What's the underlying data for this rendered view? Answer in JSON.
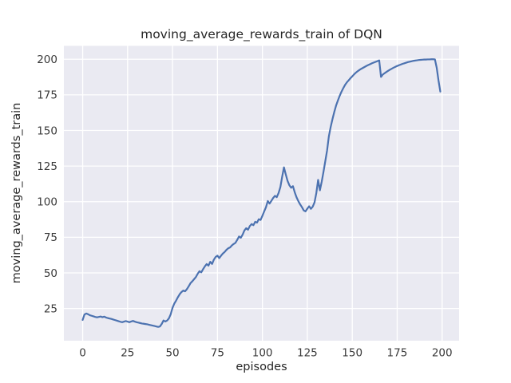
{
  "chart_data": {
    "type": "line",
    "title": "moving_average_rewards_train of DQN",
    "xlabel": "episodes",
    "ylabel": "moving_average_rewards_train",
    "xticks": [
      0,
      25,
      50,
      75,
      100,
      125,
      150,
      175,
      200
    ],
    "yticks": [
      25,
      50,
      75,
      100,
      125,
      150,
      175,
      200
    ],
    "xlim": [
      -10.45,
      209.45
    ],
    "ylim": [
      2.4,
      209.4
    ],
    "grid": true,
    "legend": "none",
    "style": "seaborn-darkgrid",
    "line_color": "#4C72B0",
    "plot_bg": "#EAEAF2",
    "grid_color": "#FFFFFF",
    "text_color": "#262626",
    "x_start": 0,
    "x_step": 1,
    "series": [
      {
        "name": "moving_average_rewards_train",
        "values": [
          17.0,
          20.8,
          21.5,
          21.0,
          20.3,
          19.9,
          19.5,
          19.1,
          18.8,
          19.1,
          19.4,
          18.9,
          19.3,
          18.7,
          18.3,
          18.0,
          17.7,
          17.3,
          16.9,
          16.5,
          16.1,
          15.7,
          15.4,
          15.8,
          16.2,
          15.8,
          15.4,
          15.9,
          16.3,
          15.8,
          15.4,
          15.1,
          14.8,
          14.5,
          14.3,
          14.1,
          13.9,
          13.6,
          13.3,
          13.0,
          12.7,
          12.4,
          12.1,
          12.4,
          14.2,
          16.6,
          15.9,
          16.6,
          18.1,
          21.0,
          25.5,
          28.5,
          30.6,
          33.0,
          35.1,
          36.6,
          37.6,
          37.1,
          38.6,
          40.6,
          42.8,
          44.1,
          45.6,
          47.1,
          49.4,
          51.2,
          50.4,
          52.6,
          54.6,
          56.2,
          55.1,
          57.8,
          56.3,
          59.3,
          61.2,
          62.1,
          60.4,
          62.1,
          63.6,
          64.7,
          66.2,
          67.3,
          67.9,
          69.3,
          70.3,
          71.1,
          73.2,
          75.6,
          74.7,
          76.9,
          79.8,
          81.4,
          80.3,
          82.9,
          84.3,
          83.5,
          85.9,
          85.3,
          87.7,
          87.2,
          90.1,
          93.2,
          96.1,
          100.5,
          98.7,
          100.6,
          102.6,
          104.1,
          103.2,
          106.1,
          110.2,
          117.5,
          124.1,
          119.2,
          114.6,
          111.6,
          109.8,
          110.9,
          106.6,
          103.1,
          100.4,
          98.1,
          96.2,
          93.9,
          93.2,
          95.1,
          96.8,
          95.0,
          96.5,
          99.5,
          106.0,
          115.3,
          108.0,
          114.0,
          121.0,
          128.5,
          136.0,
          146.0,
          152.5,
          158.0,
          163.0,
          167.5,
          171.0,
          174.3,
          177.2,
          179.7,
          182.0,
          183.8,
          185.2,
          186.7,
          188.0,
          189.4,
          190.6,
          191.6,
          192.5,
          193.3,
          194.0,
          194.7,
          195.4,
          196.0,
          196.6,
          197.2,
          197.7,
          198.2,
          198.7,
          199.2,
          187.6,
          189.3,
          190.2,
          191.1,
          191.9,
          192.7,
          193.4,
          194.1,
          194.7,
          195.3,
          195.8,
          196.3,
          196.8,
          197.2,
          197.6,
          198.0,
          198.3,
          198.6,
          198.9,
          199.1,
          199.3,
          199.5,
          199.6,
          199.7,
          199.8,
          199.8,
          199.9,
          199.9,
          200.0,
          200.0,
          199.9,
          194.0,
          185.0,
          177.3
        ]
      }
    ]
  }
}
